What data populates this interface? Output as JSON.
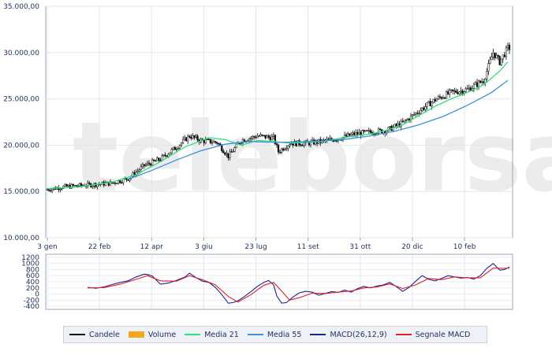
{
  "watermark": "teleborsa",
  "chart_data": [
    {
      "type": "candlestick",
      "x_ticks": [
        "3 gen",
        "22 feb",
        "12 apr",
        "3 giu",
        "23 lug",
        "11 set",
        "31 ott",
        "20 dic",
        "10 feb"
      ],
      "y_ticks": [
        "10.000,00",
        "15.000,00",
        "20.000,00",
        "25.000,00",
        "30.000,00",
        "35.000,00"
      ],
      "ylim": [
        10000,
        35000
      ],
      "grid": true,
      "price_path": [
        [
          0,
          15200
        ],
        [
          10,
          15500
        ],
        [
          25,
          15700
        ],
        [
          40,
          15900
        ],
        [
          50,
          16400
        ],
        [
          60,
          17800
        ],
        [
          70,
          18500
        ],
        [
          80,
          19800
        ],
        [
          88,
          21000
        ],
        [
          95,
          20500
        ],
        [
          105,
          20300
        ],
        [
          112,
          18800
        ],
        [
          120,
          20500
        ],
        [
          130,
          21000
        ],
        [
          140,
          20800
        ],
        [
          143,
          19300
        ],
        [
          150,
          20200
        ],
        [
          160,
          20200
        ],
        [
          170,
          20400
        ],
        [
          180,
          20700
        ],
        [
          190,
          21200
        ],
        [
          200,
          21400
        ],
        [
          210,
          21600
        ],
        [
          220,
          22400
        ],
        [
          230,
          23700
        ],
        [
          240,
          24900
        ],
        [
          250,
          25700
        ],
        [
          260,
          26000
        ],
        [
          270,
          27000
        ],
        [
          276,
          30000
        ],
        [
          280,
          29000
        ],
        [
          285,
          30500
        ]
      ],
      "series": [
        {
          "name": "Media 21",
          "color": "#2fe07a",
          "values": [
            [
              0,
              15300
            ],
            [
              20,
              15500
            ],
            [
              40,
              16000
            ],
            [
              55,
              16800
            ],
            [
              70,
              18200
            ],
            [
              85,
              19800
            ],
            [
              100,
              20800
            ],
            [
              110,
              20600
            ],
            [
              120,
              20000
            ],
            [
              130,
              20500
            ],
            [
              140,
              20400
            ],
            [
              150,
              20200
            ],
            [
              160,
              20300
            ],
            [
              170,
              20400
            ],
            [
              180,
              20700
            ],
            [
              190,
              21000
            ],
            [
              200,
              21200
            ],
            [
              210,
              21600
            ],
            [
              220,
              22200
            ],
            [
              230,
              23200
            ],
            [
              240,
              24200
            ],
            [
              250,
              25000
            ],
            [
              260,
              25700
            ],
            [
              270,
              26500
            ],
            [
              280,
              28000
            ],
            [
              285,
              29000
            ]
          ]
        },
        {
          "name": "Media 55",
          "color": "#3d8fe0",
          "values": [
            [
              50,
              16300
            ],
            [
              65,
              17300
            ],
            [
              80,
              18400
            ],
            [
              95,
              19400
            ],
            [
              110,
              20100
            ],
            [
              125,
              20400
            ],
            [
              140,
              20300
            ],
            [
              155,
              20350
            ],
            [
              170,
              20450
            ],
            [
              185,
              20650
            ],
            [
              200,
              21000
            ],
            [
              215,
              21500
            ],
            [
              230,
              22200
            ],
            [
              245,
              23100
            ],
            [
              260,
              24300
            ],
            [
              275,
              25700
            ],
            [
              285,
              27000
            ]
          ]
        }
      ]
    },
    {
      "type": "line",
      "y_ticks": [
        "-400",
        "-200",
        "0",
        "200",
        "400",
        "600",
        "800",
        "1000",
        "1200"
      ],
      "ylim": [
        -500,
        1300
      ],
      "series": [
        {
          "name": "MACD(26,12,9)",
          "color": "#1a2496",
          "values": [
            [
              25,
              220
            ],
            [
              30,
              190
            ],
            [
              35,
              230
            ],
            [
              40,
              310
            ],
            [
              45,
              380
            ],
            [
              50,
              430
            ],
            [
              55,
              560
            ],
            [
              60,
              650
            ],
            [
              62,
              640
            ],
            [
              65,
              590
            ],
            [
              70,
              320
            ],
            [
              75,
              360
            ],
            [
              80,
              450
            ],
            [
              85,
              550
            ],
            [
              88,
              680
            ],
            [
              92,
              540
            ],
            [
              96,
              420
            ],
            [
              100,
              380
            ],
            [
              104,
              220
            ],
            [
              108,
              -20
            ],
            [
              112,
              -300
            ],
            [
              115,
              -280
            ],
            [
              118,
              -220
            ],
            [
              122,
              -80
            ],
            [
              126,
              80
            ],
            [
              130,
              250
            ],
            [
              134,
              380
            ],
            [
              137,
              440
            ],
            [
              140,
              300
            ],
            [
              142,
              -60
            ],
            [
              145,
              -300
            ],
            [
              148,
              -280
            ],
            [
              152,
              -100
            ],
            [
              156,
              40
            ],
            [
              160,
              90
            ],
            [
              164,
              60
            ],
            [
              168,
              -40
            ],
            [
              172,
              20
            ],
            [
              176,
              80
            ],
            [
              180,
              50
            ],
            [
              184,
              130
            ],
            [
              188,
              60
            ],
            [
              192,
              180
            ],
            [
              196,
              250
            ],
            [
              200,
              200
            ],
            [
              204,
              260
            ],
            [
              208,
              300
            ],
            [
              212,
              380
            ],
            [
              216,
              240
            ],
            [
              220,
              90
            ],
            [
              224,
              220
            ],
            [
              228,
              420
            ],
            [
              232,
              600
            ],
            [
              236,
              480
            ],
            [
              240,
              430
            ],
            [
              244,
              510
            ],
            [
              248,
              600
            ],
            [
              252,
              560
            ],
            [
              256,
              520
            ],
            [
              260,
              540
            ],
            [
              264,
              490
            ],
            [
              268,
              600
            ],
            [
              272,
              840
            ],
            [
              276,
              1000
            ],
            [
              280,
              780
            ],
            [
              283,
              800
            ],
            [
              286,
              880
            ]
          ]
        },
        {
          "name": "Segnale MACD",
          "color": "#e02020",
          "values": [
            [
              25,
              200
            ],
            [
              35,
              210
            ],
            [
              45,
              320
            ],
            [
              55,
              480
            ],
            [
              62,
              600
            ],
            [
              70,
              430
            ],
            [
              80,
              420
            ],
            [
              88,
              600
            ],
            [
              96,
              470
            ],
            [
              104,
              300
            ],
            [
              112,
              -80
            ],
            [
              118,
              -260
            ],
            [
              126,
              -20
            ],
            [
              134,
              290
            ],
            [
              140,
              380
            ],
            [
              145,
              100
            ],
            [
              150,
              -200
            ],
            [
              156,
              -120
            ],
            [
              164,
              30
            ],
            [
              172,
              20
            ],
            [
              180,
              60
            ],
            [
              188,
              100
            ],
            [
              196,
              200
            ],
            [
              204,
              230
            ],
            [
              212,
              330
            ],
            [
              220,
              180
            ],
            [
              228,
              300
            ],
            [
              236,
              510
            ],
            [
              244,
              470
            ],
            [
              252,
              560
            ],
            [
              260,
              530
            ],
            [
              268,
              530
            ],
            [
              276,
              850
            ],
            [
              282,
              840
            ],
            [
              286,
              850
            ]
          ]
        }
      ]
    }
  ],
  "legend": [
    {
      "label": "Candele",
      "color": "#000000",
      "kind": "line"
    },
    {
      "label": "Volume",
      "color": "#f7a51b",
      "kind": "box"
    },
    {
      "label": "Media 21",
      "color": "#2fe07a",
      "kind": "line"
    },
    {
      "label": "Media 55",
      "color": "#3d8fe0",
      "kind": "line"
    },
    {
      "label": "MACD(26,12,9)",
      "color": "#1a2496",
      "kind": "line"
    },
    {
      "label": "Segnale MACD",
      "color": "#e02020",
      "kind": "line"
    }
  ]
}
